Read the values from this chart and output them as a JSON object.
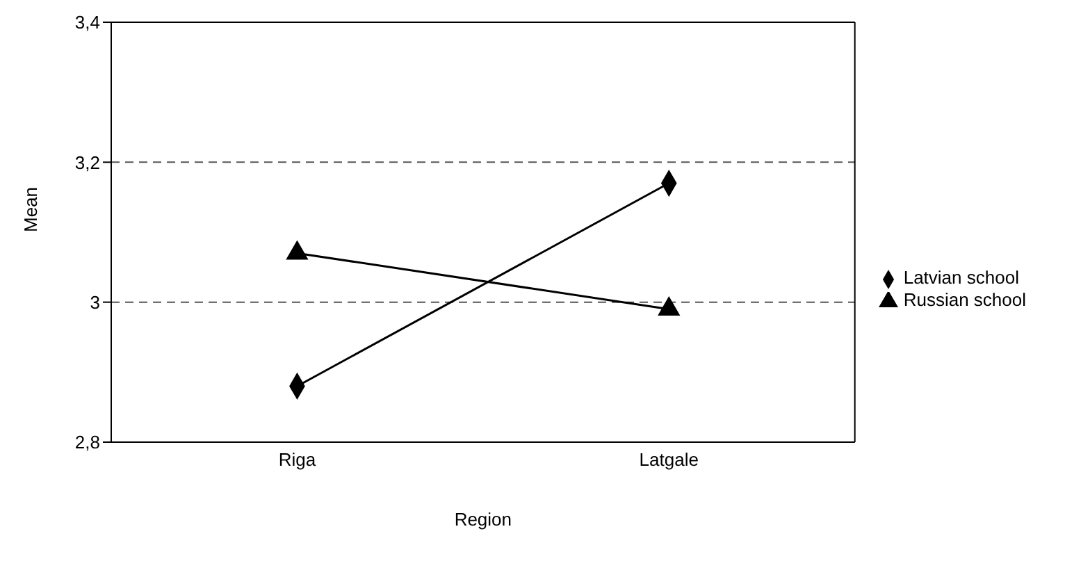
{
  "chart_data": {
    "type": "line",
    "xlabel": "Region",
    "ylabel": "Mean",
    "categories": [
      "Riga",
      "Latgale"
    ],
    "series": [
      {
        "name": "Latvian school",
        "color": "#000000",
        "marker": "diamond",
        "values": [
          2.88,
          3.17
        ]
      },
      {
        "name": "Russian school",
        "color": "#000000",
        "marker": "triangle",
        "values": [
          3.07,
          2.99
        ]
      }
    ],
    "ylim": [
      2.8,
      3.4
    ],
    "yticks": [
      {
        "value": 2.8,
        "label": "2,8"
      },
      3,
      {
        "value": 3.2,
        "label": "3,2"
      },
      {
        "value": 3.4,
        "label": "3,4"
      }
    ],
    "grid": "y",
    "legend": "right",
    "line_style": "solid"
  }
}
